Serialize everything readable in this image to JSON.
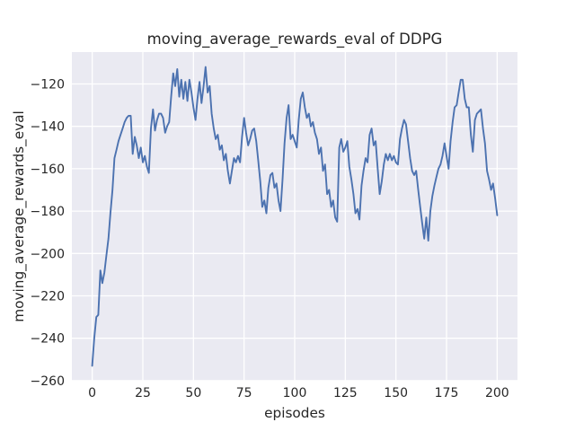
{
  "figure": {
    "title": "moving_average_rewards_eval of DDPG"
  },
  "chart_data": {
    "type": "line",
    "title": "moving_average_rewards_eval of DDPG",
    "xlabel": "episodes",
    "ylabel": "moving_average_rewards_eval",
    "legend": "none",
    "grid": true,
    "axes_background": "#eaeaf2",
    "grid_color": "#ffffff",
    "line_color": "#4c72b0",
    "text_color": "#262626",
    "xlim": [
      -10.05,
      210.05
    ],
    "ylim": [
      -260.05,
      -104.95
    ],
    "xticks": [
      0,
      25,
      50,
      75,
      100,
      125,
      150,
      175,
      200
    ],
    "yticks": [
      -260,
      -240,
      -220,
      -200,
      -180,
      -160,
      -140,
      -120
    ],
    "x": [
      0,
      1,
      2,
      3,
      4,
      5,
      6,
      7,
      8,
      9,
      10,
      11,
      12,
      13,
      14,
      15,
      16,
      17,
      18,
      19,
      20,
      21,
      22,
      23,
      24,
      25,
      26,
      27,
      28,
      29,
      30,
      31,
      32,
      33,
      34,
      35,
      36,
      37,
      38,
      39,
      40,
      41,
      42,
      43,
      44,
      45,
      46,
      47,
      48,
      49,
      50,
      51,
      52,
      53,
      54,
      55,
      56,
      57,
      58,
      59,
      60,
      61,
      62,
      63,
      64,
      65,
      66,
      67,
      68,
      69,
      70,
      71,
      72,
      73,
      74,
      75,
      76,
      77,
      78,
      79,
      80,
      81,
      82,
      83,
      84,
      85,
      86,
      87,
      88,
      89,
      90,
      91,
      92,
      93,
      94,
      95,
      96,
      97,
      98,
      99,
      100,
      101,
      102,
      103,
      104,
      105,
      106,
      107,
      108,
      109,
      110,
      111,
      112,
      113,
      114,
      115,
      116,
      117,
      118,
      119,
      120,
      121,
      122,
      123,
      124,
      125,
      126,
      127,
      128,
      129,
      130,
      131,
      132,
      133,
      134,
      135,
      136,
      137,
      138,
      139,
      140,
      141,
      142,
      143,
      144,
      145,
      146,
      147,
      148,
      149,
      150,
      151,
      152,
      153,
      154,
      155,
      156,
      157,
      158,
      159,
      160,
      161,
      162,
      163,
      164,
      165,
      166,
      167,
      168,
      169,
      170,
      171,
      172,
      173,
      174,
      175,
      176,
      177,
      178,
      179,
      180,
      181,
      182,
      183,
      184,
      185,
      186,
      187,
      188,
      189,
      190,
      191,
      192,
      193,
      194,
      195,
      196,
      197,
      198,
      199,
      200
    ],
    "y": [
      -253,
      -240,
      -230,
      -229,
      -208,
      -214,
      -209,
      -201,
      -193,
      -181,
      -170,
      -155,
      -151,
      -147,
      -144,
      -141,
      -138,
      -136,
      -135,
      -135,
      -153,
      -145,
      -149,
      -155,
      -150,
      -157,
      -154,
      -159,
      -162,
      -141,
      -132,
      -142,
      -137,
      -134,
      -134,
      -136,
      -143,
      -140,
      -138,
      -126,
      -115,
      -121,
      -113,
      -126,
      -118,
      -127,
      -119,
      -128,
      -118,
      -124,
      -131,
      -137,
      -127,
      -119,
      -129,
      -121,
      -112,
      -124,
      -121,
      -134,
      -141,
      -146,
      -144,
      -151,
      -149,
      -156,
      -153,
      -161,
      -167,
      -161,
      -155,
      -157,
      -154,
      -157,
      -145,
      -136,
      -143,
      -149,
      -146,
      -142,
      -141,
      -147,
      -156,
      -166,
      -178,
      -175,
      -181,
      -169,
      -163,
      -162,
      -169,
      -167,
      -175,
      -180,
      -165,
      -148,
      -136,
      -130,
      -146,
      -144,
      -147,
      -150,
      -137,
      -127,
      -124,
      -131,
      -136,
      -134,
      -140,
      -138,
      -143,
      -146,
      -153,
      -150,
      -161,
      -158,
      -172,
      -170,
      -178,
      -175,
      -183,
      -185,
      -150,
      -146,
      -152,
      -150,
      -147,
      -159,
      -165,
      -172,
      -181,
      -179,
      -184,
      -168,
      -161,
      -155,
      -157,
      -144,
      -141,
      -149,
      -147,
      -160,
      -172,
      -166,
      -158,
      -153,
      -156,
      -153,
      -156,
      -154,
      -157,
      -158,
      -146,
      -141,
      -137,
      -139,
      -147,
      -155,
      -161,
      -163,
      -161,
      -170,
      -178,
      -186,
      -193,
      -183,
      -194,
      -180,
      -173,
      -168,
      -164,
      -160,
      -158,
      -154,
      -148,
      -154,
      -160,
      -147,
      -138,
      -131,
      -130,
      -124,
      -118,
      -118,
      -127,
      -131,
      -131,
      -144,
      -152,
      -137,
      -134,
      -133,
      -132,
      -141,
      -148,
      -161,
      -165,
      -170,
      -167,
      -174,
      -182
    ]
  }
}
